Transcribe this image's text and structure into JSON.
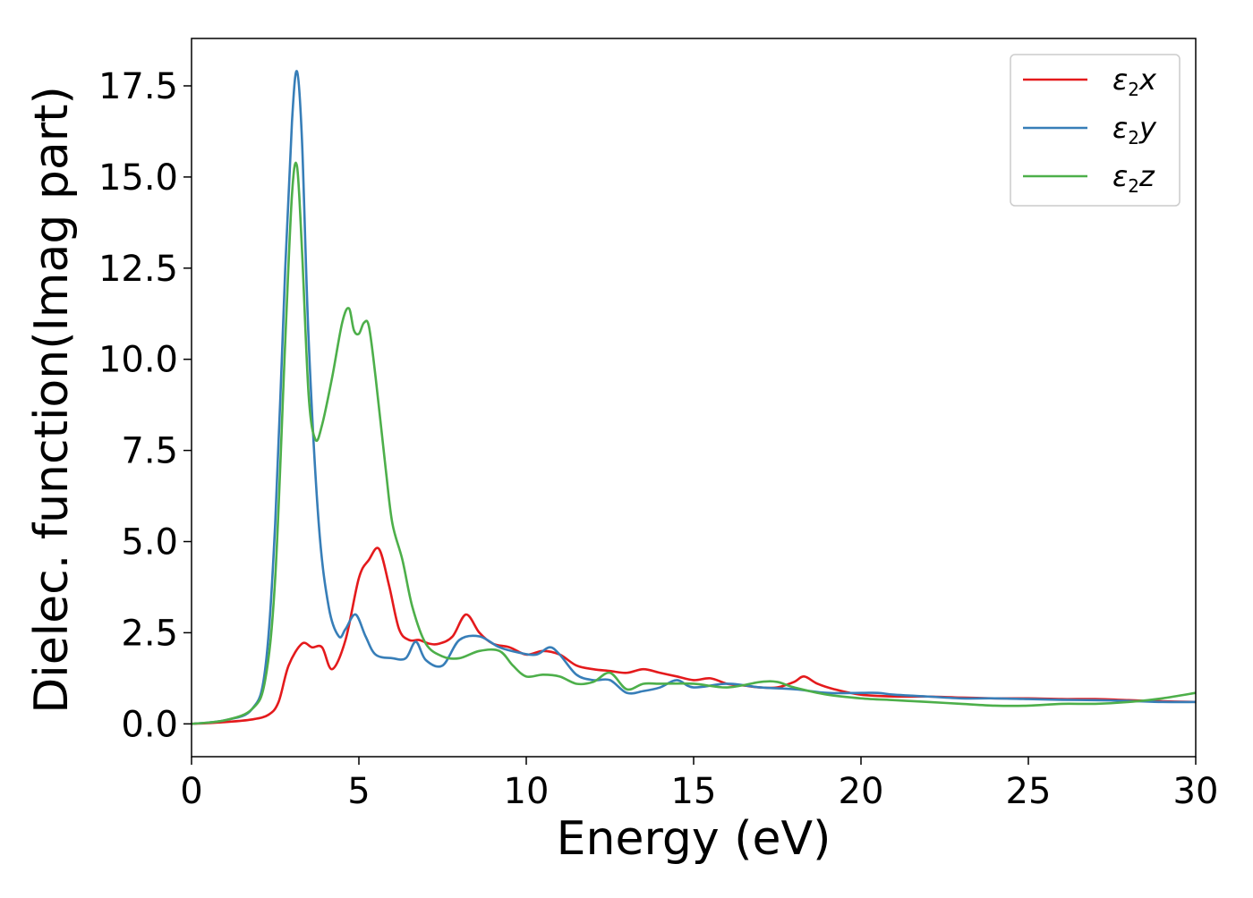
{
  "chart_data": {
    "type": "line",
    "title": "",
    "xlabel": "Energy (eV)",
    "ylabel": "Dielec. function(Imag part)",
    "xlim": [
      0,
      30
    ],
    "ylim": [
      -0.9,
      18.8
    ],
    "xticks": [
      0,
      5,
      10,
      15,
      20,
      25,
      30
    ],
    "yticks": [
      0.0,
      2.5,
      5.0,
      7.5,
      10.0,
      12.5,
      15.0,
      17.5
    ],
    "xtick_labels": [
      "0",
      "5",
      "10",
      "15",
      "20",
      "25",
      "30"
    ],
    "ytick_labels": [
      "0.0",
      "2.5",
      "5.0",
      "7.5",
      "10.0",
      "12.5",
      "15.0",
      "17.5"
    ],
    "grid": false,
    "legend_position": "top-right",
    "series": [
      {
        "name": "ε2x",
        "label_base": "ε",
        "label_sub": "2",
        "label_suffix": "x",
        "color": "#e41a1c",
        "x": [
          0,
          1,
          1.8,
          2.3,
          2.6,
          2.9,
          3.3,
          3.6,
          3.9,
          4.2,
          4.6,
          5.0,
          5.3,
          5.6,
          5.9,
          6.2,
          6.5,
          6.8,
          7.1,
          7.4,
          7.8,
          8.2,
          8.6,
          9.0,
          9.5,
          10.0,
          10.5,
          11.0,
          11.5,
          12.0,
          12.5,
          13.0,
          13.5,
          14.0,
          14.5,
          15.0,
          15.5,
          16.0,
          16.5,
          17.0,
          17.5,
          18.0,
          18.3,
          18.7,
          19.2,
          20.0,
          21.0,
          22.0,
          23.0,
          24.0,
          25.0,
          26.0,
          27.0,
          28.0,
          29.0,
          30.0
        ],
        "y": [
          0.0,
          0.05,
          0.12,
          0.25,
          0.6,
          1.6,
          2.2,
          2.1,
          2.1,
          1.5,
          2.3,
          4.0,
          4.5,
          4.8,
          3.8,
          2.6,
          2.3,
          2.3,
          2.2,
          2.2,
          2.4,
          3.0,
          2.5,
          2.2,
          2.1,
          1.9,
          2.0,
          1.9,
          1.6,
          1.5,
          1.45,
          1.4,
          1.5,
          1.4,
          1.3,
          1.2,
          1.25,
          1.1,
          1.05,
          1.0,
          1.0,
          1.15,
          1.3,
          1.1,
          0.95,
          0.8,
          0.75,
          0.75,
          0.72,
          0.7,
          0.7,
          0.68,
          0.68,
          0.65,
          0.62,
          0.6
        ]
      },
      {
        "name": "ε2y",
        "label_base": "ε",
        "label_sub": "2",
        "label_suffix": "y",
        "color": "#377eb8",
        "x": [
          0,
          1,
          1.8,
          2.2,
          2.5,
          2.8,
          3.0,
          3.15,
          3.3,
          3.5,
          3.8,
          4.1,
          4.4,
          4.6,
          4.9,
          5.2,
          5.5,
          6.0,
          6.4,
          6.7,
          7.0,
          7.5,
          8.0,
          8.6,
          9.2,
          9.8,
          10.3,
          10.7,
          11.0,
          11.5,
          12.0,
          12.5,
          13.0,
          13.5,
          14.0,
          14.5,
          15.0,
          16.0,
          17.0,
          18.0,
          19.0,
          20.0,
          20.5,
          21.0,
          22.0,
          23.0,
          24.0,
          25.0,
          26.0,
          27.0,
          28.0,
          29.0,
          30.0
        ],
        "y": [
          0.0,
          0.1,
          0.4,
          1.5,
          5.5,
          12.5,
          16.5,
          17.9,
          16.0,
          10.5,
          5.5,
          3.2,
          2.4,
          2.6,
          3.0,
          2.4,
          1.9,
          1.8,
          1.8,
          2.25,
          1.75,
          1.6,
          2.3,
          2.4,
          2.1,
          1.95,
          1.9,
          2.1,
          1.9,
          1.35,
          1.2,
          1.2,
          0.85,
          0.9,
          1.0,
          1.2,
          1.0,
          1.1,
          1.0,
          0.95,
          0.85,
          0.85,
          0.85,
          0.8,
          0.75,
          0.7,
          0.7,
          0.68,
          0.66,
          0.65,
          0.63,
          0.6,
          0.6
        ]
      },
      {
        "name": "ε2z",
        "label_base": "ε",
        "label_sub": "2",
        "label_suffix": "z",
        "color": "#4daf4a",
        "x": [
          0,
          1,
          1.8,
          2.2,
          2.5,
          2.8,
          3.0,
          3.15,
          3.3,
          3.5,
          3.7,
          3.9,
          4.2,
          4.5,
          4.7,
          4.85,
          5.0,
          5.15,
          5.3,
          5.5,
          5.8,
          6.0,
          6.3,
          6.6,
          7.0,
          7.5,
          8.0,
          8.6,
          9.2,
          9.6,
          10.0,
          10.5,
          11.0,
          11.5,
          12.0,
          12.5,
          13.0,
          13.5,
          14.0,
          15.0,
          16.0,
          17.0,
          17.5,
          18.0,
          19.0,
          20.0,
          21.0,
          22.0,
          23.0,
          24.0,
          25.0,
          26.0,
          27.0,
          28.0,
          29.0,
          30.0
        ],
        "y": [
          0.0,
          0.1,
          0.4,
          1.2,
          4.0,
          10.5,
          14.5,
          15.3,
          13.0,
          9.0,
          7.8,
          8.2,
          9.5,
          11.0,
          11.4,
          10.8,
          10.7,
          11.0,
          10.9,
          9.5,
          7.0,
          5.5,
          4.5,
          3.2,
          2.2,
          1.85,
          1.8,
          2.0,
          2.0,
          1.6,
          1.3,
          1.35,
          1.3,
          1.1,
          1.15,
          1.4,
          0.95,
          1.1,
          1.1,
          1.1,
          1.0,
          1.15,
          1.15,
          1.0,
          0.8,
          0.7,
          0.65,
          0.6,
          0.55,
          0.5,
          0.5,
          0.55,
          0.55,
          0.6,
          0.7,
          0.85
        ]
      }
    ]
  }
}
